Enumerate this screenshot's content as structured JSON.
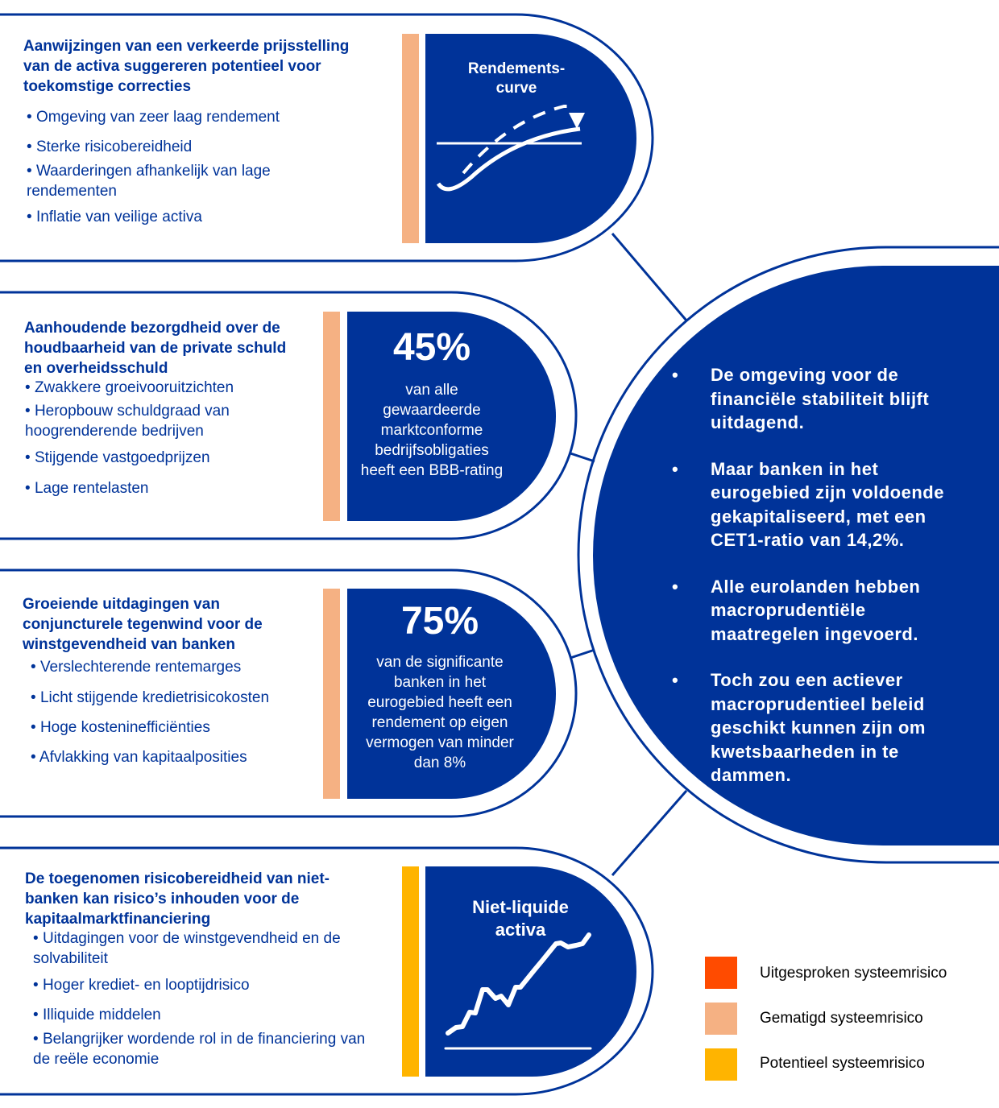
{
  "colors": {
    "navy": "#003399",
    "pronounced": "#FF4B00",
    "moderate": "#F5B183",
    "potential": "#FFB400"
  },
  "panels": [
    {
      "heading": "Aanwijzingen van een verkeerde prijsstelling van de activa suggereren potentieel voor toekomstige correcties",
      "items": [
        "Omgeving van zeer laag rendement",
        "Sterke risicobereidheid",
        "Waarderingen afhankelijk van lage rendementen",
        "Inflatie van veilige activa"
      ],
      "risk": "moderate",
      "badge_title": "Rendements-\ncurve",
      "badge_icon": "yield-curve-icon"
    },
    {
      "heading": "Aanhoudende bezorgdheid over de houdbaarheid van de private schuld en overheidsschuld",
      "items": [
        "Zwakkere groeivooruitzichten",
        "Heropbouw schuldgraad van hoogrenderende bedrijven",
        "Stijgende vastgoedprijzen",
        "Lage rentelasten"
      ],
      "risk": "moderate",
      "badge_value": "45%",
      "badge_text": "van alle gewaardeerde marktconforme bedrijfsobligaties heeft een BBB-rating"
    },
    {
      "heading": "Groeiende uitdagingen van conjuncturele tegenwind voor de winstgevendheid van banken",
      "items": [
        "Verslechterende rentemarges",
        "Licht stijgende kredietrisicokosten",
        "Hoge kosteninefficiënties",
        "Afvlakking van kapitaalposities"
      ],
      "risk": "moderate",
      "badge_value": "75%",
      "badge_text": "van de significante banken in het eurogebied heeft een rendement op eigen vermogen van minder dan 8%"
    },
    {
      "heading": "De toegenomen risicobereidheid van niet-banken kan risico’s inhouden voor de kapitaalmarktfinanciering",
      "items": [
        "Uitdagingen voor de winstgevendheid en de solvabiliteit",
        "Hoger krediet- en looptijdrisico",
        "Illiquide middelen",
        "Belangrijker wordende rol in de financiering van de reële economie"
      ],
      "risk": "potential",
      "badge_title": "Niet-liquide\nactiva",
      "badge_icon": "rising-line-chart-icon"
    }
  ],
  "summary": {
    "bullet": "•",
    "points": [
      "De omgeving voor de financiële stabiliteit blijft uitdagend.",
      "Maar banken in het eurogebied zijn voldoende gekapitaliseerd, met een CET1-ratio van 14,2%.",
      "Alle eurolanden hebben macroprudentiële maatregelen ingevoerd.",
      "Toch zou een actiever macroprudentieel beleid geschikt kunnen zijn om kwetsbaarheden in te dammen."
    ]
  },
  "legend": [
    {
      "label": "Uitgesproken systeemrisico",
      "color": "#FF4B00"
    },
    {
      "label": "Gematigd systeemrisico",
      "color": "#F5B183"
    },
    {
      "label": "Potentieel systeemrisico",
      "color": "#FFB400"
    }
  ]
}
